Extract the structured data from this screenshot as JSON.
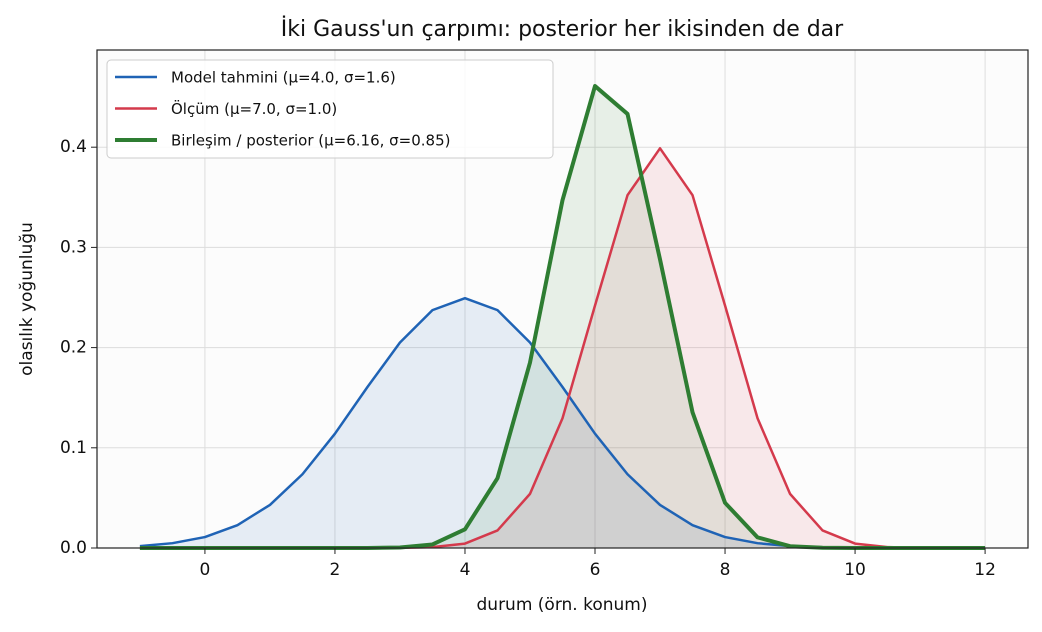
{
  "chart_data": {
    "type": "line",
    "title": "İki Gauss'un çarpımı: posterior her ikisinden de dar",
    "x_label": "durum (örn. konum)",
    "y_label": "olasılık yoğunluğu",
    "x": [
      -1,
      -0.5,
      0,
      0.5,
      1,
      1.5,
      2,
      2.5,
      3,
      3.5,
      4,
      4.5,
      5,
      5.5,
      6,
      6.5,
      7,
      7.5,
      8,
      8.5,
      9,
      9.5,
      10,
      10.5,
      11,
      11.5,
      12
    ],
    "series": [
      {
        "name": "Model tahmini  (μ=4.0, σ=1.6)",
        "color": "#1f63b5",
        "width": 2.5,
        "values": [
          0.0019,
          0.0048,
          0.0109,
          0.0228,
          0.043,
          0.0736,
          0.1141,
          0.1607,
          0.2051,
          0.2374,
          0.2493,
          0.2374,
          0.2051,
          0.1607,
          0.1141,
          0.0736,
          0.043,
          0.0228,
          0.0109,
          0.0048,
          0.0019,
          0.0007,
          0.0002,
          0.0001,
          0,
          0,
          0
        ]
      },
      {
        "name": "Ölçüm  (μ=7.0, σ=1.0)",
        "color": "#d43a4c",
        "width": 2.5,
        "values": [
          0,
          0,
          0,
          0,
          0,
          0,
          0,
          0,
          0.0001,
          0.0009,
          0.0044,
          0.0175,
          0.054,
          0.1295,
          0.242,
          0.3521,
          0.3989,
          0.3521,
          0.242,
          0.1295,
          0.054,
          0.0175,
          0.0044,
          0.0009,
          0.0001,
          0,
          0
        ]
      },
      {
        "name": "Birleşim / posterior  (μ=6.16, σ=0.85)",
        "color": "#2e7d32",
        "width": 4,
        "values": [
          0,
          0,
          0,
          0,
          0,
          0,
          0,
          0,
          0.0005,
          0.0035,
          0.0186,
          0.0697,
          0.185,
          0.3471,
          0.461,
          0.4332,
          0.288,
          0.1354,
          0.0451,
          0.0106,
          0.0018,
          0.0002,
          0,
          0,
          0,
          0,
          0
        ]
      }
    ],
    "xlim": [
      -1.66,
      12.66
    ],
    "ylim": [
      0,
      0.497
    ],
    "xticks": [
      0,
      2,
      4,
      6,
      8,
      10,
      12
    ],
    "yticks": [
      {
        "value": 0,
        "label": "0.0"
      },
      0.1,
      0.2,
      0.3,
      0.4
    ],
    "grid": true,
    "fill": true,
    "legend": "upper left"
  }
}
